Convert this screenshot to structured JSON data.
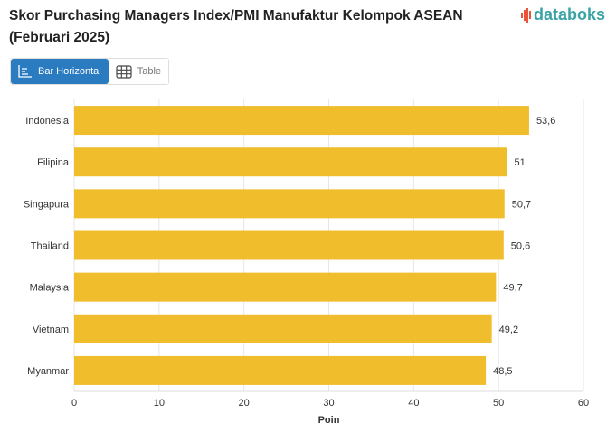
{
  "header": {
    "title": "Skor Purchasing Managers Index/PMI Manufaktur Kelompok ASEAN (Februari 2025)",
    "logo_text": "databoks"
  },
  "view_toggle": {
    "bar_label": "Bar Horizontal",
    "table_label": "Table",
    "bar_icon": "bar-chart-icon",
    "table_icon": "table-grid-icon",
    "selected": "Bar Horizontal"
  },
  "colors": {
    "bar": "#F0BD2D",
    "accent": "#2A7BBF",
    "logo": "#3AA3A6",
    "logo_mark": "#E9543B"
  },
  "chart_data": {
    "type": "bar",
    "orientation": "horizontal",
    "categories": [
      "Indonesia",
      "Filipina",
      "Singapura",
      "Thailand",
      "Malaysia",
      "Vietnam",
      "Myanmar"
    ],
    "values": [
      53.6,
      51,
      50.7,
      50.6,
      49.7,
      49.2,
      48.5
    ],
    "value_labels": [
      "53,6",
      "51",
      "50,7",
      "50,6",
      "49,7",
      "49,2",
      "48,5"
    ],
    "xlabel": "Poin",
    "ylabel": "",
    "xlim": [
      0,
      60
    ],
    "xticks": [
      0,
      10,
      20,
      30,
      40,
      50,
      60
    ],
    "grid": true,
    "legend": "none"
  }
}
